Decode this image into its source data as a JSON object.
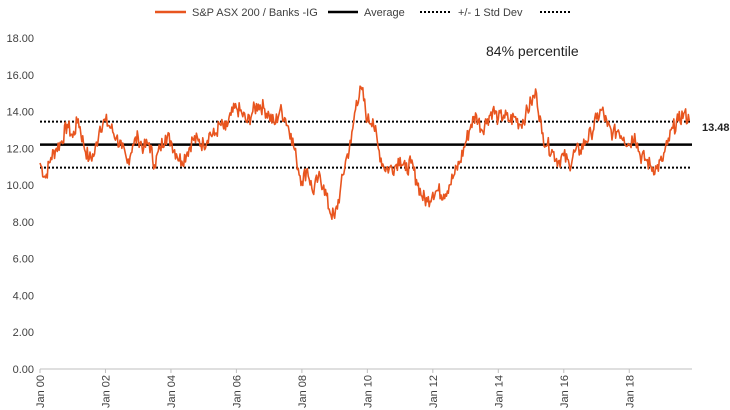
{
  "chart_data": {
    "type": "line",
    "x_tick_labels": [
      "Jan 00",
      "Jan 02",
      "Jan 04",
      "Jan 06",
      "Jan 08",
      "Jan 10",
      "Jan 12",
      "Jan 14",
      "Jan 16",
      "Jan 18"
    ],
    "y_tick_labels": [
      "0.00",
      "2.00",
      "4.00",
      "6.00",
      "8.00",
      "10.00",
      "12.00",
      "14.00",
      "16.00",
      "18.00"
    ],
    "ylim": [
      0,
      18
    ],
    "xlim": [
      "2000-01",
      "2019-12"
    ],
    "grid": false,
    "legend_position": "top",
    "annotation": "84% percentile",
    "last_value_label": "13.48",
    "series": [
      {
        "name": "S&P ASX 200 / Banks -IG",
        "color": "#E8551F",
        "x": [
          "2000-01",
          "2000-03",
          "2000-05",
          "2000-07",
          "2000-09",
          "2000-11",
          "2001-01",
          "2001-03",
          "2001-05",
          "2001-07",
          "2001-09",
          "2001-11",
          "2002-01",
          "2002-03",
          "2002-05",
          "2002-07",
          "2002-09",
          "2002-11",
          "2003-01",
          "2003-03",
          "2003-05",
          "2003-07",
          "2003-09",
          "2003-11",
          "2004-01",
          "2004-03",
          "2004-05",
          "2004-07",
          "2004-09",
          "2004-11",
          "2005-01",
          "2005-03",
          "2005-05",
          "2005-07",
          "2005-09",
          "2005-11",
          "2006-01",
          "2006-03",
          "2006-05",
          "2006-07",
          "2006-09",
          "2006-11",
          "2007-01",
          "2007-03",
          "2007-05",
          "2007-07",
          "2007-09",
          "2007-11",
          "2008-01",
          "2008-03",
          "2008-05",
          "2008-07",
          "2008-09",
          "2008-11",
          "2009-01",
          "2009-03",
          "2009-05",
          "2009-07",
          "2009-09",
          "2009-11",
          "2010-01",
          "2010-03",
          "2010-05",
          "2010-07",
          "2010-09",
          "2010-11",
          "2011-01",
          "2011-03",
          "2011-05",
          "2011-07",
          "2011-09",
          "2011-11",
          "2012-01",
          "2012-03",
          "2012-05",
          "2012-07",
          "2012-09",
          "2012-11",
          "2013-01",
          "2013-03",
          "2013-05",
          "2013-07",
          "2013-09",
          "2013-11",
          "2014-01",
          "2014-03",
          "2014-05",
          "2014-07",
          "2014-09",
          "2014-11",
          "2015-01",
          "2015-03",
          "2015-05",
          "2015-07",
          "2015-09",
          "2015-11",
          "2016-01",
          "2016-03",
          "2016-05",
          "2016-07",
          "2016-09",
          "2016-11",
          "2017-01",
          "2017-03",
          "2017-05",
          "2017-07",
          "2017-09",
          "2017-11",
          "2018-01",
          "2018-03",
          "2018-05",
          "2018-07",
          "2018-09",
          "2018-11",
          "2019-01",
          "2019-03",
          "2019-05",
          "2019-07",
          "2019-09",
          "2019-11"
        ],
        "values": [
          11.2,
          10.4,
          11.5,
          12.0,
          12.4,
          13.3,
          12.6,
          13.6,
          12.2,
          11.4,
          11.7,
          13.2,
          13.5,
          13.1,
          12.6,
          12.0,
          11.2,
          12.2,
          12.6,
          12.0,
          12.3,
          11.1,
          12.0,
          12.7,
          12.4,
          11.7,
          11.3,
          11.8,
          12.5,
          12.4,
          12.2,
          12.8,
          12.7,
          13.3,
          13.0,
          13.8,
          14.2,
          13.9,
          13.4,
          14.0,
          14.4,
          14.2,
          13.8,
          13.3,
          14.1,
          13.6,
          12.8,
          11.4,
          10.2,
          10.9,
          9.6,
          10.4,
          10.0,
          8.7,
          8.2,
          9.6,
          11.3,
          12.3,
          14.6,
          15.2,
          13.5,
          13.6,
          12.0,
          11.0,
          10.9,
          11.0,
          11.5,
          10.8,
          11.2,
          10.3,
          9.4,
          9.1,
          9.6,
          9.7,
          9.5,
          10.0,
          10.6,
          11.3,
          12.3,
          13.3,
          13.8,
          13.0,
          13.6,
          14.1,
          13.6,
          13.8,
          13.5,
          13.7,
          13.3,
          13.8,
          14.5,
          15.0,
          12.8,
          12.2,
          11.8,
          11.3,
          11.6,
          11.1,
          11.8,
          11.9,
          12.4,
          12.8,
          13.6,
          14.1,
          13.2,
          12.8,
          13.0,
          12.6,
          12.2,
          12.8,
          11.6,
          11.4,
          11.0,
          10.9,
          11.3,
          12.2,
          13.1,
          13.5,
          13.9,
          13.5
        ]
      },
      {
        "name": "Average",
        "color": "#000000",
        "value": 12.2
      },
      {
        "name": "+/- 1 Std Dev",
        "color": "#000000",
        "upper": 13.45,
        "lower": 10.95
      },
      {
        "name": "",
        "color": "#000000"
      }
    ]
  }
}
